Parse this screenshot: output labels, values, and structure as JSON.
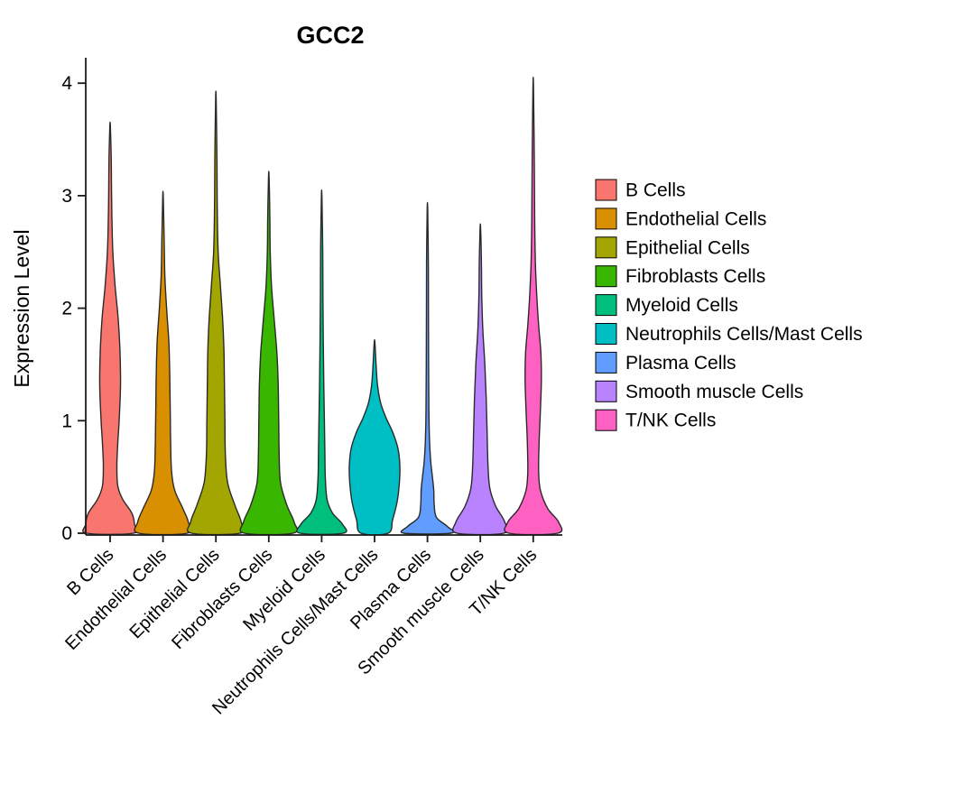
{
  "chart_data": {
    "type": "violin",
    "title": "GCC2",
    "ylabel": "Expression Level",
    "xlabel": "",
    "ylim": [
      0,
      4
    ],
    "yticks": [
      0,
      1,
      2,
      3,
      4
    ],
    "grid": false,
    "legend_position": "right",
    "categories": [
      "B Cells",
      "Endothelial Cells",
      "Epithelial Cells",
      "Fibroblasts Cells",
      "Myeloid Cells",
      "Neutrophils Cells/Mast Cells",
      "Plasma Cells",
      "Smooth muscle Cells",
      "T/NK Cells"
    ],
    "series": [
      {
        "name": "B Cells",
        "color": "#F8766D",
        "max_expression": 3.62,
        "profile": [
          [
            0,
            26
          ],
          [
            0.08,
            27
          ],
          [
            0.18,
            24
          ],
          [
            0.3,
            14
          ],
          [
            0.42,
            8.5
          ],
          [
            0.6,
            7.5
          ],
          [
            0.8,
            8.5
          ],
          [
            1.0,
            10
          ],
          [
            1.3,
            11.5
          ],
          [
            1.6,
            11
          ],
          [
            1.9,
            9
          ],
          [
            2.2,
            5.5
          ],
          [
            2.5,
            3
          ],
          [
            2.8,
            2
          ],
          [
            3.1,
            1.5
          ],
          [
            3.35,
            1.2
          ],
          [
            3.62,
            0.3
          ]
        ]
      },
      {
        "name": "Endothelial Cells",
        "color": "#D89000",
        "max_expression": 2.99,
        "profile": [
          [
            0,
            27
          ],
          [
            0.1,
            28
          ],
          [
            0.22,
            22
          ],
          [
            0.38,
            13
          ],
          [
            0.55,
            9.5
          ],
          [
            0.8,
            8.5
          ],
          [
            1.1,
            8
          ],
          [
            1.4,
            7.5
          ],
          [
            1.7,
            6.5
          ],
          [
            2.0,
            4
          ],
          [
            2.3,
            2
          ],
          [
            2.6,
            1.3
          ],
          [
            2.99,
            0.3
          ]
        ]
      },
      {
        "name": "Epithelial Cells",
        "color": "#A3A500",
        "max_expression": 3.86,
        "profile": [
          [
            0,
            27
          ],
          [
            0.1,
            28
          ],
          [
            0.25,
            21
          ],
          [
            0.45,
            13
          ],
          [
            0.7,
            10.5
          ],
          [
            1.0,
            10
          ],
          [
            1.3,
            9.5
          ],
          [
            1.6,
            9
          ],
          [
            1.9,
            7.5
          ],
          [
            2.2,
            5
          ],
          [
            2.5,
            2.5
          ],
          [
            2.9,
            1.5
          ],
          [
            3.3,
            1.2
          ],
          [
            3.86,
            0.3
          ]
        ]
      },
      {
        "name": "Fibroblasts Cells",
        "color": "#39B600",
        "max_expression": 3.17,
        "profile": [
          [
            0,
            27
          ],
          [
            0.1,
            28
          ],
          [
            0.25,
            20
          ],
          [
            0.45,
            13
          ],
          [
            0.7,
            11.5
          ],
          [
            1.0,
            11
          ],
          [
            1.3,
            10.5
          ],
          [
            1.6,
            9
          ],
          [
            1.9,
            6
          ],
          [
            2.2,
            3
          ],
          [
            2.5,
            1.6
          ],
          [
            2.8,
            1.2
          ],
          [
            3.17,
            0.3
          ]
        ]
      },
      {
        "name": "Myeloid Cells",
        "color": "#00BF7D",
        "max_expression": 2.99,
        "profile": [
          [
            0,
            24
          ],
          [
            0.08,
            23
          ],
          [
            0.18,
            12
          ],
          [
            0.3,
            6
          ],
          [
            0.5,
            4
          ],
          [
            0.75,
            3.5
          ],
          [
            1.0,
            3
          ],
          [
            1.3,
            2.4
          ],
          [
            1.7,
            1.8
          ],
          [
            2.1,
            1.4
          ],
          [
            2.5,
            1.2
          ],
          [
            2.99,
            0.3
          ]
        ]
      },
      {
        "name": "Neutrophils Cells/Mast Cells",
        "color": "#00BFC4",
        "max_expression": 1.69,
        "profile": [
          [
            0,
            15
          ],
          [
            0.12,
            20
          ],
          [
            0.28,
            25
          ],
          [
            0.45,
            27.5
          ],
          [
            0.6,
            28
          ],
          [
            0.75,
            26
          ],
          [
            0.9,
            20
          ],
          [
            1.02,
            13
          ],
          [
            1.15,
            7
          ],
          [
            1.3,
            3.5
          ],
          [
            1.45,
            2
          ],
          [
            1.69,
            0.4
          ]
        ]
      },
      {
        "name": "Plasma Cells",
        "color": "#619CFF",
        "max_expression": 2.88,
        "profile": [
          [
            0,
            26
          ],
          [
            0.06,
            22
          ],
          [
            0.14,
            10
          ],
          [
            0.25,
            7.5
          ],
          [
            0.38,
            7
          ],
          [
            0.5,
            5.5
          ],
          [
            0.65,
            3.5
          ],
          [
            0.85,
            2.2
          ],
          [
            1.1,
            1.6
          ],
          [
            1.5,
            1.3
          ],
          [
            2.0,
            1.1
          ],
          [
            2.4,
            1.0
          ],
          [
            2.88,
            0.3
          ]
        ]
      },
      {
        "name": "Smooth muscle Cells",
        "color": "#B983FF",
        "max_expression": 2.71,
        "profile": [
          [
            0,
            26
          ],
          [
            0.1,
            27
          ],
          [
            0.24,
            17
          ],
          [
            0.4,
            10.5
          ],
          [
            0.6,
            8.5
          ],
          [
            0.9,
            7.5
          ],
          [
            1.2,
            6.5
          ],
          [
            1.5,
            5
          ],
          [
            1.8,
            2.8
          ],
          [
            2.1,
            1.6
          ],
          [
            2.4,
            1.2
          ],
          [
            2.71,
            0.3
          ]
        ]
      },
      {
        "name": "T/NK Cells",
        "color": "#FF61C3",
        "max_expression": 3.97,
        "profile": [
          [
            0,
            27
          ],
          [
            0.1,
            28
          ],
          [
            0.22,
            16
          ],
          [
            0.38,
            8
          ],
          [
            0.55,
            6
          ],
          [
            0.8,
            6.5
          ],
          [
            1.1,
            8
          ],
          [
            1.35,
            9
          ],
          [
            1.6,
            8.5
          ],
          [
            1.85,
            6
          ],
          [
            2.1,
            4
          ],
          [
            2.4,
            2.4
          ],
          [
            2.8,
            1.6
          ],
          [
            3.3,
            1.2
          ],
          [
            3.97,
            0.3
          ]
        ]
      }
    ]
  }
}
